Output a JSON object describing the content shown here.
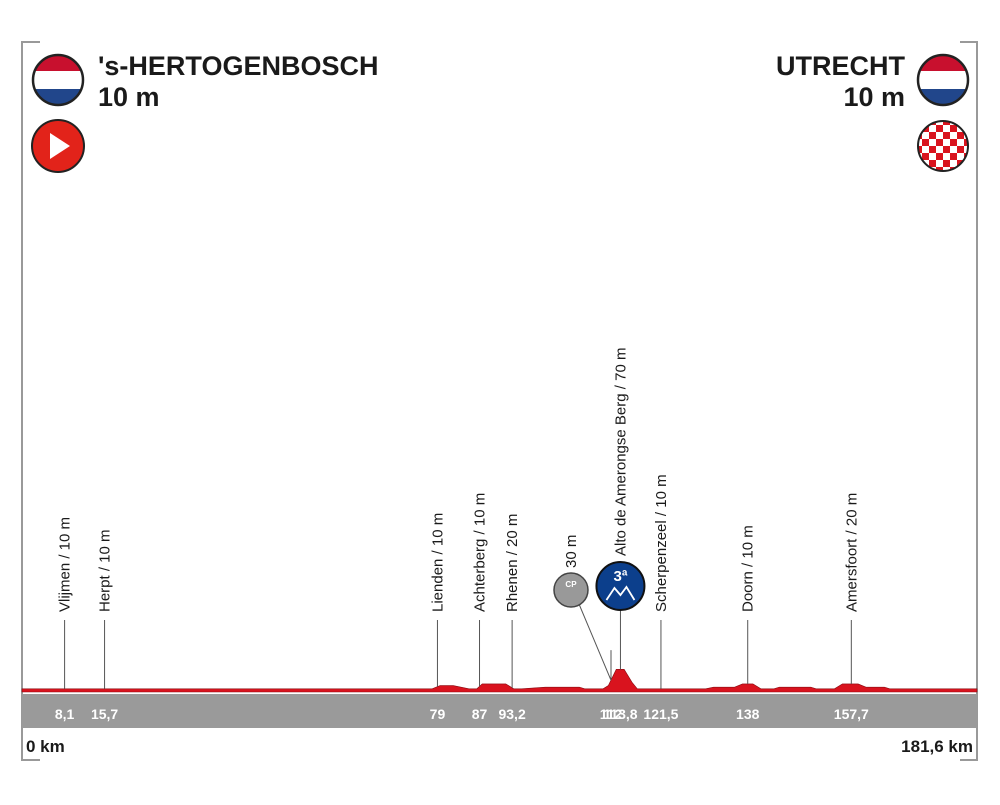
{
  "start": {
    "name": "'s-HERTOGENBOSCH",
    "elevation": "10 m"
  },
  "finish": {
    "name": "UTRECHT",
    "elevation": "10 m"
  },
  "chart_data": {
    "type": "area",
    "color": "#d9131e",
    "start_label": "0 km",
    "end_label": "181,6 km",
    "xlim": [
      0,
      181.6
    ],
    "ylim": [
      0,
      2000
    ],
    "x": [
      0,
      78,
      79.5,
      82,
      85,
      86.5,
      87.5,
      92,
      93.5,
      95,
      99.5,
      100.5,
      106,
      107,
      110.5,
      111.5,
      113,
      114.5,
      116,
      117,
      130,
      131.5,
      135.5,
      137,
      139,
      140.5,
      143,
      144,
      150,
      151,
      154.5,
      156,
      159,
      160.5,
      164,
      165,
      181.6
    ],
    "values": [
      10,
      10,
      20,
      20,
      10,
      10,
      25,
      25,
      10,
      10,
      15,
      15,
      15,
      10,
      10,
      20,
      70,
      70,
      30,
      10,
      10,
      15,
      15,
      25,
      25,
      10,
      10,
      15,
      15,
      10,
      10,
      25,
      25,
      15,
      15,
      10,
      10
    ],
    "waypoints": [
      {
        "name": "Vlijmen / 10 m",
        "km": {
          "value": 8.1,
          "label": "8,1"
        }
      },
      {
        "name": "Herpt / 10 m",
        "km": {
          "value": 15.7,
          "label": "15,7"
        }
      },
      {
        "name": "Lienden / 10 m",
        "km": 79
      },
      {
        "name": "Achterberg / 10 m",
        "km": 87
      },
      {
        "name": "Rhenen / 20 m",
        "km": {
          "value": 93.2,
          "label": "93,2"
        }
      },
      {
        "name": "30 m",
        "km": 112,
        "icon": "CP"
      },
      {
        "name": "Alto de Amerongse Berg / 70 m",
        "km": {
          "value": 113.8,
          "label": "113,8"
        },
        "icon": "3ª"
      },
      {
        "name": "Scherpenzeel / 10 m",
        "km": {
          "value": 121.5,
          "label": "121,5"
        }
      },
      {
        "name": "Doorn / 10 m",
        "km": 138
      },
      {
        "name": "Amersfoort / 20 m",
        "km": {
          "value": 157.7,
          "label": "157,7"
        }
      }
    ]
  }
}
